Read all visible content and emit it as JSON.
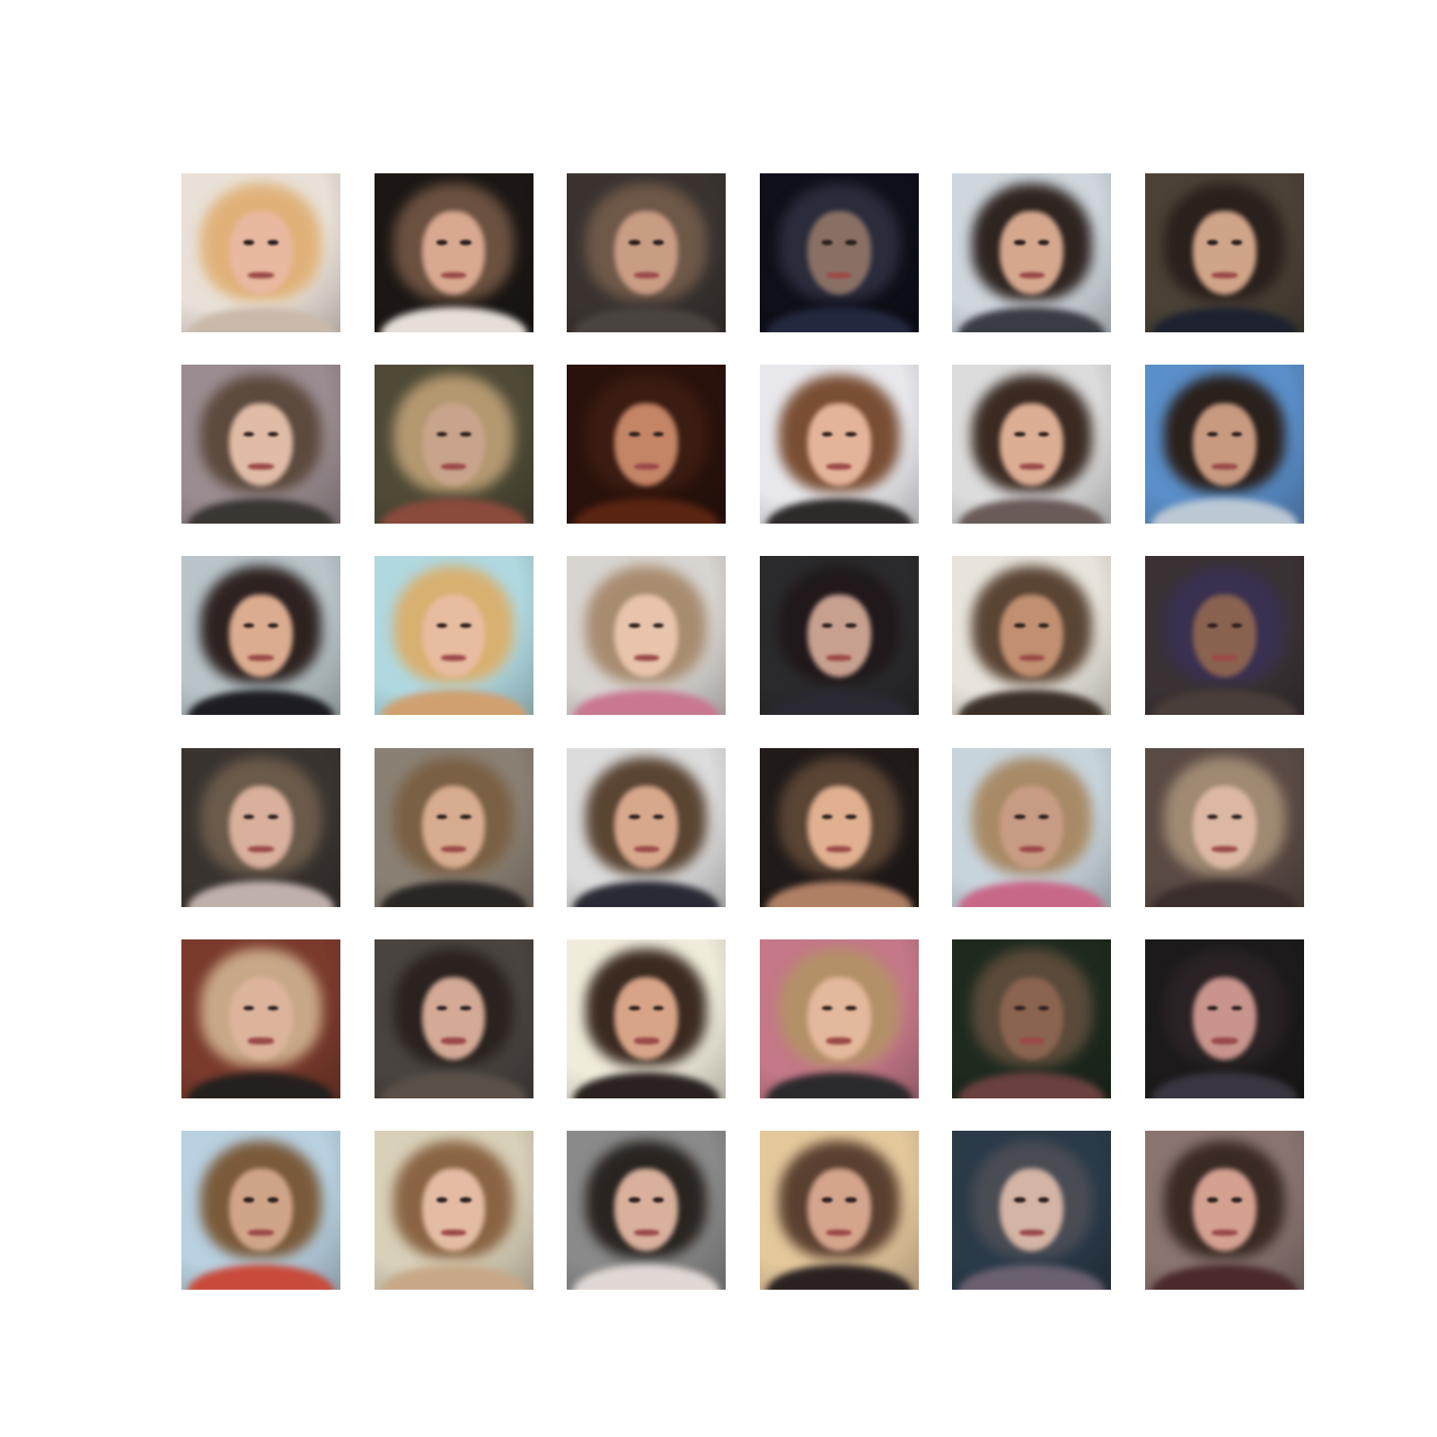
{
  "figure": {
    "background": "#ffffff",
    "rows": 6,
    "cols": 6
  },
  "tiles": [
    {
      "bg": "#e9e1d8",
      "hair": "#e0b27a",
      "skin": "#e8b8a0",
      "shirt": "#c9b9aa"
    },
    {
      "bg": "#1c1714",
      "hair": "#6b5140",
      "skin": "#d8a890",
      "shirt": "#e6dfd8"
    },
    {
      "bg": "#3a3330",
      "hair": "#6e5848",
      "skin": "#c99c84",
      "shirt": "#4a4440"
    },
    {
      "bg": "#0e0f18",
      "hair": "#2a2c3c",
      "skin": "#8a7064",
      "shirt": "#22283e"
    },
    {
      "bg": "#cfd6dc",
      "hair": "#2e2420",
      "skin": "#d5a88e",
      "shirt": "#3a3c44"
    },
    {
      "bg": "#4a4236",
      "hair": "#2a201c",
      "skin": "#d0a488",
      "shirt": "#1e2230"
    },
    {
      "bg": "#9a8c90",
      "hair": "#5c4a3e",
      "skin": "#e0bca6",
      "shirt": "#3a3632"
    },
    {
      "bg": "#4e4a36",
      "hair": "#b49870",
      "skin": "#c8a48c",
      "shirt": "#8a4a3c"
    },
    {
      "bg": "#2a120c",
      "hair": "#3a1c12",
      "skin": "#c48466",
      "shirt": "#5a2412"
    },
    {
      "bg": "#e8e8ec",
      "hair": "#7a4e34",
      "skin": "#e4b49a",
      "shirt": "#2e2a2a"
    },
    {
      "bg": "#dcdcdc",
      "hair": "#3a2a22",
      "skin": "#dcae94",
      "shirt": "#6a5a58"
    },
    {
      "bg": "#5a8ec8",
      "hair": "#2a201c",
      "skin": "#c89a80",
      "shirt": "#bcc8d4"
    },
    {
      "bg": "#b8c4c8",
      "hair": "#2e2220",
      "skin": "#dcac90",
      "shirt": "#1c1c22"
    },
    {
      "bg": "#b0d8e0",
      "hair": "#d8b070",
      "skin": "#e8bca0",
      "shirt": "#d0a070"
    },
    {
      "bg": "#d8d4d0",
      "hair": "#a88c70",
      "skin": "#e8c4ac",
      "shirt": "#c87890"
    },
    {
      "bg": "#2a2a2c",
      "hair": "#20181a",
      "skin": "#c8a090",
      "shirt": "#2a2830"
    },
    {
      "bg": "#e8e4dc",
      "hair": "#5a4434",
      "skin": "#c09070",
      "shirt": "#3a3028"
    },
    {
      "bg": "#3a3234",
      "hair": "#3a3050",
      "skin": "#8a6250",
      "shirt": "#4a3e3a"
    },
    {
      "bg": "#3a3430",
      "hair": "#6a5a4a",
      "skin": "#d8b09c",
      "shirt": "#c0b0ac"
    },
    {
      "bg": "#8a8074",
      "hair": "#7a6044",
      "skin": "#d8ac90",
      "shirt": "#2a2624"
    },
    {
      "bg": "#dcdcdc",
      "hair": "#5a4432",
      "skin": "#d8a88c",
      "shirt": "#2a2a34"
    },
    {
      "bg": "#201a18",
      "hair": "#5a4434",
      "skin": "#e0b090",
      "shirt": "#b08064"
    },
    {
      "bg": "#c8d4dc",
      "hair": "#a88a66",
      "skin": "#c89c84",
      "shirt": "#c86888"
    },
    {
      "bg": "#5a4a44",
      "hair": "#a08a74",
      "skin": "#dcb8a4",
      "shirt": "#3a2e2c"
    },
    {
      "bg": "#7a3a2c",
      "hair": "#c8a888",
      "skin": "#dcb49c",
      "shirt": "#24201e"
    },
    {
      "bg": "#4a4440",
      "hair": "#2a221e",
      "skin": "#d4aa96",
      "shirt": "#5a5048"
    },
    {
      "bg": "#f0ecdc",
      "hair": "#3a2a20",
      "skin": "#d8a488",
      "shirt": "#2a2220"
    },
    {
      "bg": "#c47888",
      "hair": "#b49068",
      "skin": "#e4b89c",
      "shirt": "#2a2a2c"
    },
    {
      "bg": "#1e2a1e",
      "hair": "#5a4a3a",
      "skin": "#8a6450",
      "shirt": "#6a4040"
    },
    {
      "bg": "#1c1a1a",
      "hair": "#2a2224",
      "skin": "#c8948c",
      "shirt": "#3a3640"
    },
    {
      "bg": "#b8d0e0",
      "hair": "#7a5a3a",
      "skin": "#d0a488",
      "shirt": "#c84a3a"
    },
    {
      "bg": "#d8d0b8",
      "hair": "#8a6444",
      "skin": "#e4bca4",
      "shirt": "#c8a888"
    },
    {
      "bg": "#8a8a8a",
      "hair": "#2a2420",
      "skin": "#d8b09c",
      "shirt": "#e0d8d4"
    },
    {
      "bg": "#e4c89c",
      "hair": "#5a4030",
      "skin": "#d4a48c",
      "shirt": "#2a2222"
    },
    {
      "bg": "#2a3a48",
      "hair": "#4a4c54",
      "skin": "#d4b4a4",
      "shirt": "#6a6070"
    },
    {
      "bg": "#8a7470",
      "hair": "#3a2a24",
      "skin": "#d4a090",
      "shirt": "#4a2a2c"
    }
  ]
}
